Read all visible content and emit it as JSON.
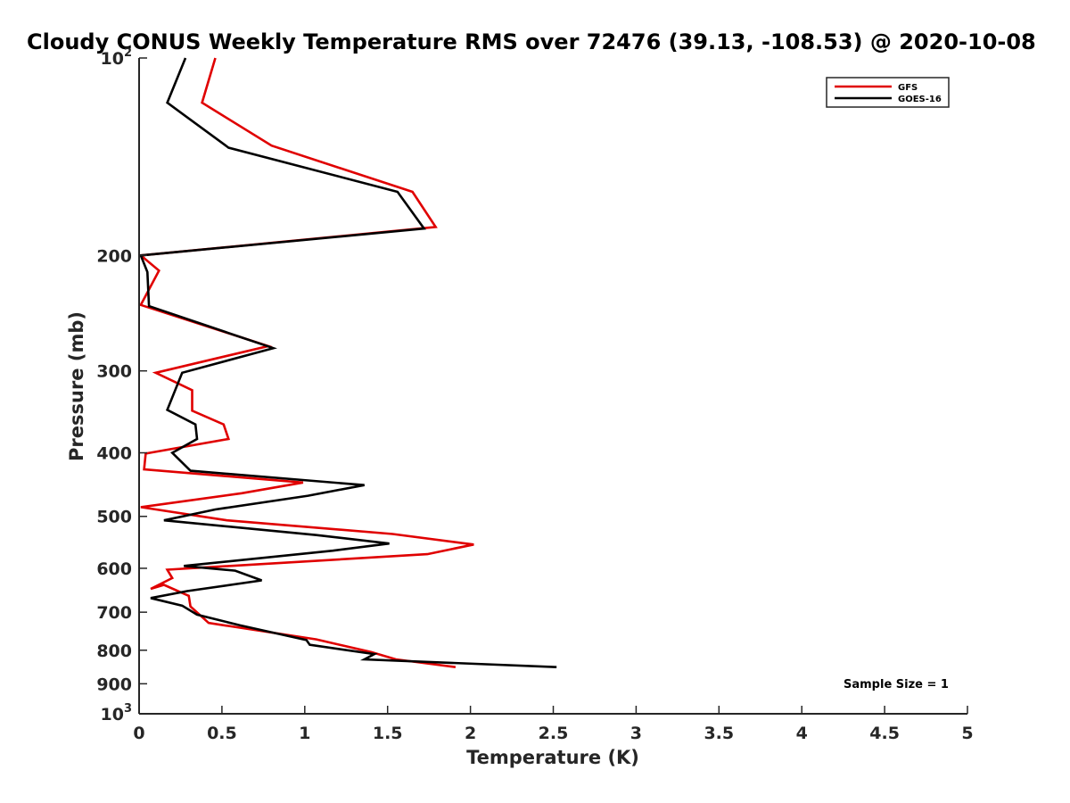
{
  "chart_data": {
    "type": "line",
    "title": "Cloudy CONUS Weekly Temperature RMS over 72476 (39.13, -108.53) @ 2020-10-08",
    "xlabel": "Temperature (K)",
    "ylabel": "Pressure (mb)",
    "xlim": [
      0,
      5
    ],
    "ylim": [
      100,
      1000
    ],
    "y_scale": "log",
    "y_reversed": true,
    "grid": false,
    "x_ticks": [
      0,
      0.5,
      1,
      1.5,
      2,
      2.5,
      3,
      3.5,
      4,
      4.5,
      5
    ],
    "x_tick_labels": [
      "0",
      "0.5",
      "1",
      "1.5",
      "2",
      "2.5",
      "3",
      "3.5",
      "4",
      "4.5",
      "5"
    ],
    "y_ticks": [
      200,
      300,
      400,
      500,
      600,
      700,
      800,
      900
    ],
    "y_tick_labels": [
      "200",
      "300",
      "400",
      "500",
      "600",
      "700",
      "800",
      "900"
    ],
    "y_end_ticks": [
      {
        "value": 100,
        "base": "10",
        "exp": "2"
      },
      {
        "value": 1000,
        "base": "10",
        "exp": "3"
      }
    ],
    "legend_position": "top-right",
    "series": [
      {
        "name": "GFS",
        "color": "#e00000",
        "points": [
          [
            0.46,
            100
          ],
          [
            0.38,
            117
          ],
          [
            0.8,
            136
          ],
          [
            1.65,
            160
          ],
          [
            1.79,
            181
          ],
          [
            0.01,
            200
          ],
          [
            0.12,
            211
          ],
          [
            0.01,
            238
          ],
          [
            0.78,
            275
          ],
          [
            0.1,
            302
          ],
          [
            0.32,
            321
          ],
          [
            0.32,
            345
          ],
          [
            0.51,
            362
          ],
          [
            0.54,
            381
          ],
          [
            0.04,
            401
          ],
          [
            0.03,
            424
          ],
          [
            0.99,
            444
          ],
          [
            0.62,
            461
          ],
          [
            0.01,
            484
          ],
          [
            0.53,
            507
          ],
          [
            1.53,
            532
          ],
          [
            2.02,
            552
          ],
          [
            1.74,
            571
          ],
          [
            0.17,
            603
          ],
          [
            0.2,
            621
          ],
          [
            0.07,
            645
          ],
          [
            0.15,
            636
          ],
          [
            0.3,
            661
          ],
          [
            0.31,
            686
          ],
          [
            0.42,
            727
          ],
          [
            1.07,
            770
          ],
          [
            1.4,
            805
          ],
          [
            1.55,
            826
          ],
          [
            1.91,
            849
          ]
        ]
      },
      {
        "name": "GOES-16",
        "color": "#000000",
        "points": [
          [
            0.28,
            100
          ],
          [
            0.17,
            117
          ],
          [
            0.54,
            137
          ],
          [
            1.56,
            160
          ],
          [
            1.72,
            182
          ],
          [
            0.01,
            200
          ],
          [
            0.05,
            212
          ],
          [
            0.06,
            239
          ],
          [
            0.81,
            277
          ],
          [
            0.26,
            302
          ],
          [
            0.17,
            344
          ],
          [
            0.34,
            362
          ],
          [
            0.35,
            381
          ],
          [
            0.2,
            400
          ],
          [
            0.31,
            426
          ],
          [
            1.36,
            448
          ],
          [
            1.02,
            465
          ],
          [
            0.46,
            488
          ],
          [
            0.15,
            507
          ],
          [
            1.07,
            534
          ],
          [
            1.51,
            550
          ],
          [
            1.17,
            564
          ],
          [
            0.27,
            595
          ],
          [
            0.58,
            605
          ],
          [
            0.74,
            626
          ],
          [
            0.29,
            650
          ],
          [
            0.07,
            666
          ],
          [
            0.26,
            684
          ],
          [
            0.35,
            706
          ],
          [
            0.61,
            733
          ],
          [
            1.01,
            772
          ],
          [
            1.03,
            785
          ],
          [
            1.42,
            811
          ],
          [
            1.36,
            826
          ],
          [
            2.52,
            849
          ]
        ]
      }
    ],
    "annotation": "Sample Size = 1"
  }
}
